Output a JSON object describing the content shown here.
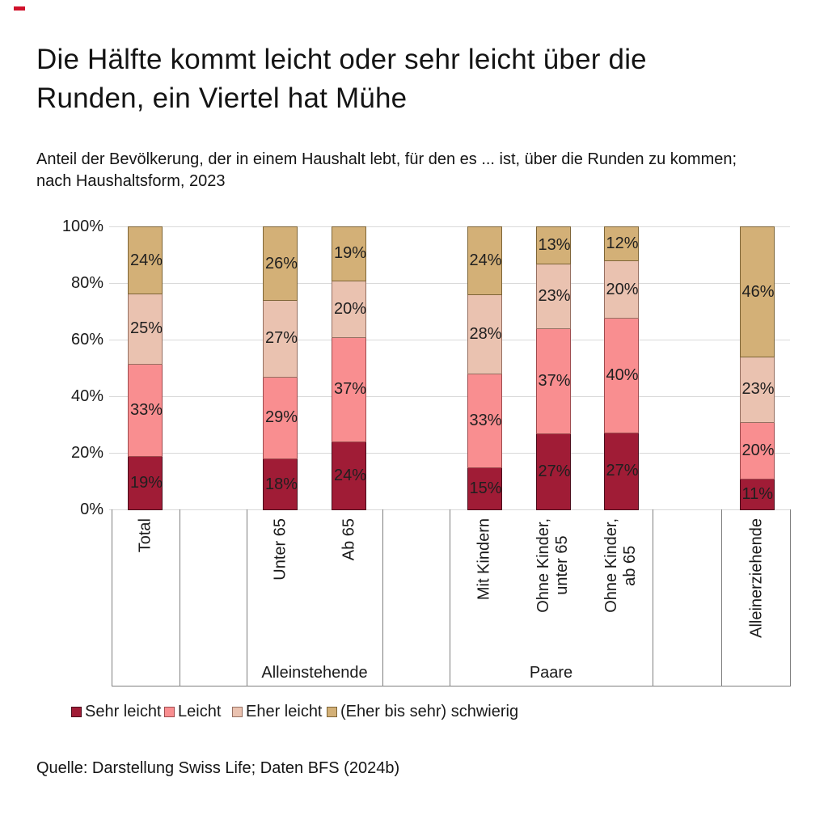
{
  "brand": {
    "mark_color": "#D0112B"
  },
  "header": {
    "title": "Die Hälfte kommt leicht oder sehr leicht über die\nRunden, ein Viertel hat Mühe",
    "subtitle": "Anteil der Bevölkerung, der in einem Haushalt lebt, für den es ... ist, über die Runden zu kommen;\nnach Haushaltsform, 2023"
  },
  "source": "Quelle: Darstellung Swiss Life; Daten BFS (2024b)",
  "chart_data": {
    "type": "bar",
    "stacked": true,
    "unit": "%",
    "value_suffix": "%",
    "ylim": [
      0,
      100
    ],
    "yticks": [
      "0%",
      "20%",
      "40%",
      "60%",
      "80%",
      "100%"
    ],
    "grid": true,
    "legend_position": "bottom",
    "gridline_color": "#D9D9D9",
    "categories": [
      "Total",
      "Unter 65",
      "Ab 65",
      "Mit Kindern",
      "Ohne Kinder,\nunter 65",
      "Ohne Kinder,\nab 65",
      "Alleinerziehende"
    ],
    "group_labels": [
      "Alleinstehende",
      "Paare"
    ],
    "series": [
      {
        "name": "Sehr leicht",
        "color": "#A01C36",
        "border": "#4A0D1C",
        "values": [
          19,
          18,
          24,
          15,
          27,
          27,
          11
        ]
      },
      {
        "name": "Leicht",
        "color": "#F98E90",
        "border": "#9E4B4E",
        "values": [
          33,
          29,
          37,
          33,
          37,
          40,
          20
        ]
      },
      {
        "name": "Eher leicht",
        "color": "#EAC2B0",
        "border": "#967062",
        "values": [
          25,
          27,
          20,
          28,
          23,
          20,
          23
        ]
      },
      {
        "name": "(Eher bis sehr) schwierig",
        "color": "#D3B077",
        "border": "#7E6537",
        "values": [
          24,
          26,
          19,
          24,
          13,
          12,
          46
        ]
      }
    ]
  }
}
